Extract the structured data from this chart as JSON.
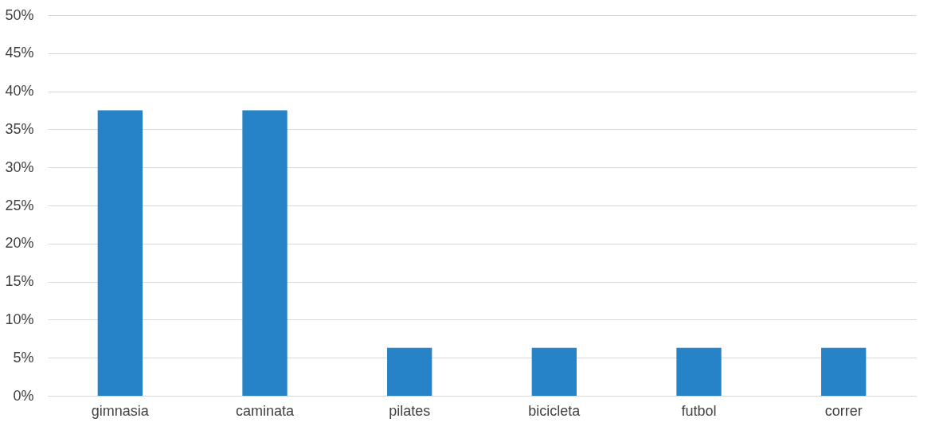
{
  "chart_data": {
    "type": "bar",
    "categories": [
      "gimnasia",
      "caminata",
      "pilates",
      "bicicleta",
      "futbol",
      "correr"
    ],
    "values": [
      37.5,
      37.5,
      6.3,
      6.3,
      6.3,
      6.3
    ],
    "color": "#2783c7",
    "ylim": [
      0,
      50
    ],
    "yticks": [
      {
        "value": 0,
        "label": "0%"
      },
      {
        "value": 5,
        "label": "5%"
      },
      {
        "value": 10,
        "label": "10%"
      },
      {
        "value": 15,
        "label": "15%"
      },
      {
        "value": 20,
        "label": "20%"
      },
      {
        "value": 25,
        "label": "25%"
      },
      {
        "value": 30,
        "label": "30%"
      },
      {
        "value": 35,
        "label": "35%"
      },
      {
        "value": 40,
        "label": "40%"
      },
      {
        "value": 45,
        "label": "45%"
      },
      {
        "value": 50,
        "label": "50%"
      }
    ],
    "grid": "y"
  }
}
